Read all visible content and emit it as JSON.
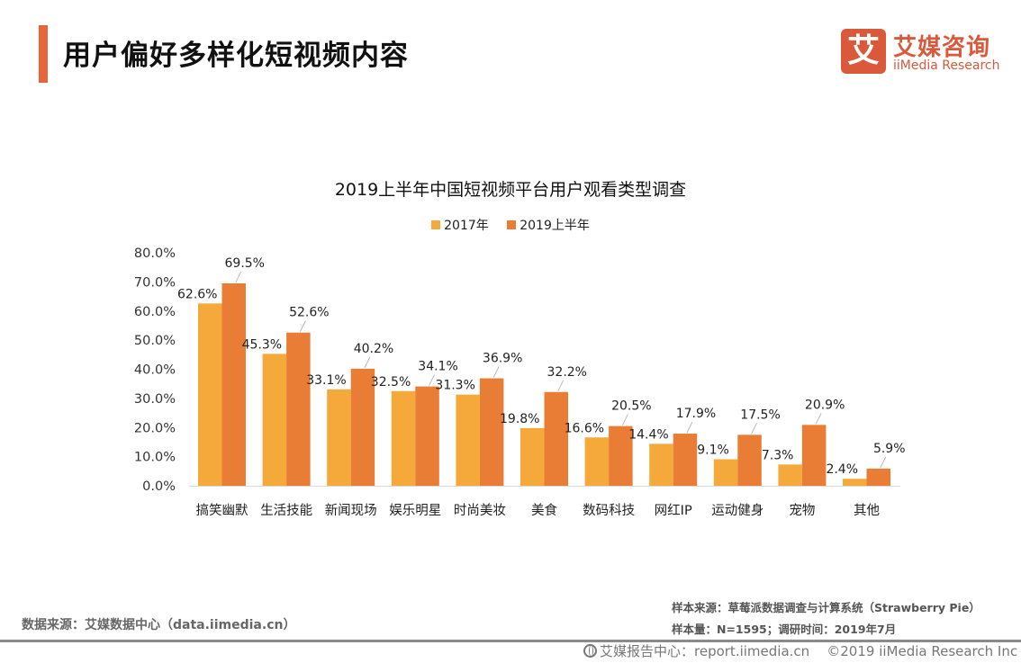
{
  "header": {
    "title": "用户偏好多样化短视频内容",
    "accent_color": "#e8643c"
  },
  "logo": {
    "mark": "艾",
    "name_cn": "艾媒咨询",
    "name_en": "iiMedia Research",
    "color": "#d9593a"
  },
  "chart_data": {
    "type": "bar",
    "title": "2019上半年中国短视频平台用户观看类型调查",
    "xlabel": "",
    "ylabel": "",
    "ylim": [
      0,
      80
    ],
    "yticks": [
      "0.0%",
      "10.0%",
      "20.0%",
      "30.0%",
      "40.0%",
      "50.0%",
      "60.0%",
      "70.0%",
      "80.0%"
    ],
    "grid": false,
    "legend_position": "top-center",
    "categories": [
      "搞笑幽默",
      "生活技能",
      "新闻现场",
      "娱乐明星",
      "时尚美妆",
      "美食",
      "数码科技",
      "网红IP",
      "运动健身",
      "宠物",
      "其他"
    ],
    "series": [
      {
        "name": "2017年",
        "color": "#f5a93a",
        "values": [
          62.6,
          45.3,
          33.1,
          32.5,
          31.3,
          19.8,
          16.6,
          14.4,
          9.1,
          7.3,
          2.4
        ]
      },
      {
        "name": "2019上半年",
        "color": "#ea7d35",
        "values": [
          69.5,
          52.6,
          40.2,
          34.1,
          36.9,
          32.2,
          20.5,
          17.9,
          17.5,
          20.9,
          5.9
        ]
      }
    ],
    "value_suffix": "%"
  },
  "footer": {
    "data_source": "数据来源：艾媒数据中心（data.iimedia.cn）",
    "sample_source": "样本来源：草莓派数据调查与计算系统（Strawberry Pie）",
    "sample_info": "样本量：N=1595；调研时间：2019年7月",
    "report_center": "艾媒报告中心：report.iimedia.cn",
    "copyright": "©2019  iiMedia Research  Inc"
  }
}
